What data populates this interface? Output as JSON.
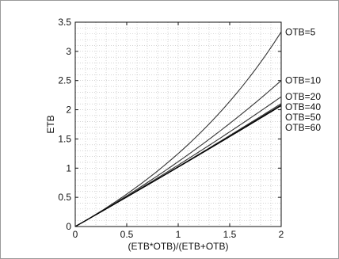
{
  "chart_data": {
    "type": "line",
    "xlabel": "(ETB*OTB)/(ETB+OTB)",
    "ylabel": "ETB",
    "xlim": [
      0,
      2
    ],
    "ylim": [
      0,
      3.5
    ],
    "xticks": [
      0,
      0.5,
      1,
      1.5,
      2
    ],
    "xtick_labels": [
      "0",
      "0.5",
      "1",
      "1.5",
      "2"
    ],
    "yticks": [
      0,
      0.5,
      1,
      1.5,
      2,
      2.5,
      3,
      3.5
    ],
    "ytick_labels": [
      "0",
      "0.5",
      "1",
      "1.5",
      "2",
      "2.5",
      "3",
      "3.5"
    ],
    "grid": true,
    "series": [
      {
        "name": "OTB=5",
        "x": [
          0,
          0.5,
          1,
          1.5,
          2
        ],
        "y": [
          0,
          0.526,
          1.25,
          2.143,
          3.333
        ],
        "color": "#333333"
      },
      {
        "name": "OTB=10",
        "x": [
          0,
          0.5,
          1,
          1.5,
          2
        ],
        "y": [
          0,
          0.526,
          1.111,
          1.765,
          2.5
        ],
        "color": "#333333"
      },
      {
        "name": "OTB=20",
        "x": [
          0,
          0.5,
          1,
          1.5,
          2
        ],
        "y": [
          0,
          0.513,
          1.053,
          1.622,
          2.222
        ],
        "color": "#333333"
      },
      {
        "name": "OTB=40",
        "x": [
          0,
          0.5,
          1,
          1.5,
          2
        ],
        "y": [
          0,
          0.506,
          1.026,
          1.558,
          2.105
        ],
        "color": "#333333"
      },
      {
        "name": "OTB=50",
        "x": [
          0,
          0.5,
          1,
          1.5,
          2
        ],
        "y": [
          0,
          0.505,
          1.02,
          1.546,
          2.083
        ],
        "color": "#111111"
      },
      {
        "name": "OTB=60",
        "x": [
          0,
          0.5,
          1,
          1.5,
          2
        ],
        "y": [
          0,
          0.504,
          1.017,
          1.538,
          2.069
        ],
        "color": "#000000"
      }
    ]
  }
}
